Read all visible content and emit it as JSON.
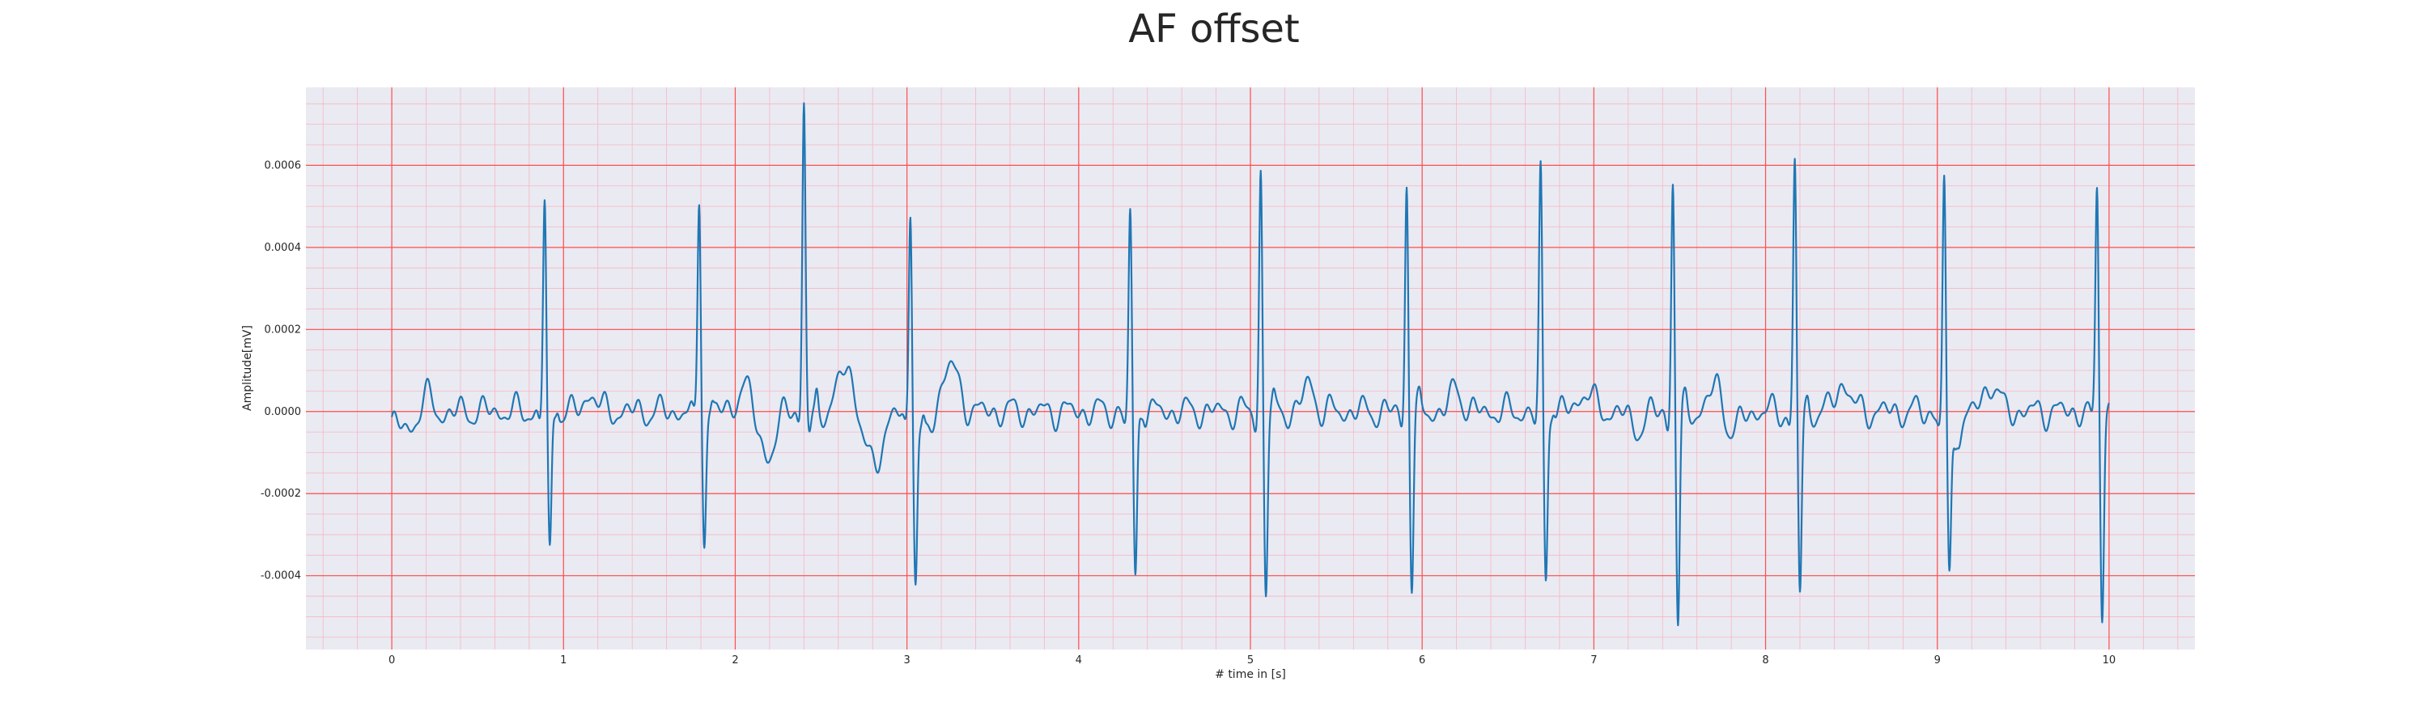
{
  "chart_data": {
    "type": "line",
    "title": "AF offset",
    "xlabel": "# time in [s]",
    "ylabel": "Amplitude[mV]",
    "xlim": [
      -0.5,
      10.5
    ],
    "ylim": [
      -0.00058,
      0.00079
    ],
    "xticks": [
      0,
      1,
      2,
      3,
      4,
      5,
      6,
      7,
      8,
      9,
      10
    ],
    "xtick_labels": [
      "0",
      "1",
      "2",
      "3",
      "4",
      "5",
      "6",
      "7",
      "8",
      "9",
      "10"
    ],
    "yticks": [
      -0.0004,
      -0.0002,
      0.0,
      0.0002,
      0.0004,
      0.0006
    ],
    "ytick_labels": [
      "-0.0004",
      "-0.0002",
      "0.0000",
      "0.0002",
      "0.0004",
      "0.0006"
    ],
    "grid": "major and minor, red",
    "background": "#eaeaf2",
    "major_grid_color": "#ff4d4d",
    "minor_grid_color": "#f7b6c2",
    "line_color": "#1f77b4",
    "beats": [
      {
        "t": 0.89,
        "r": 0.00052,
        "s": -0.00036,
        "sec": 2.5e-05
      },
      {
        "t": 1.79,
        "r": 0.00053,
        "s": -0.00031,
        "sec": 2e-05
      },
      {
        "t": 2.4,
        "r": 0.00073,
        "s": -5e-05,
        "sec": 4e-05
      },
      {
        "t": 3.02,
        "r": 0.00052,
        "s": -0.00038,
        "sec": 3e-05
      },
      {
        "t": 4.3,
        "r": 0.00048,
        "s": -0.00041,
        "sec": 2e-05
      },
      {
        "t": 5.06,
        "r": 0.00059,
        "s": -0.00043,
        "sec": 2e-05
      },
      {
        "t": 5.91,
        "r": 0.00057,
        "s": -0.00042,
        "sec": 2e-05
      },
      {
        "t": 6.69,
        "r": 0.00058,
        "s": -0.0004,
        "sec": 2e-05
      },
      {
        "t": 7.46,
        "r": 0.00057,
        "s": -0.00052,
        "sec": 2e-05
      },
      {
        "t": 8.17,
        "r": 0.0006,
        "s": -0.00044,
        "sec": 2e-05
      },
      {
        "t": 9.04,
        "r": 0.00059,
        "s": -0.00037,
        "sec": 2e-05
      },
      {
        "t": 9.93,
        "r": 0.00055,
        "s": -0.00048,
        "sec": 2e-05
      }
    ],
    "waves": [
      {
        "t": 0.2,
        "a": 5e-05,
        "w": 0.04
      },
      {
        "t": 0.1,
        "a": -2e-05,
        "w": 0.05
      },
      {
        "t": 1.16,
        "a": 5e-05,
        "w": 0.03
      },
      {
        "t": 2.05,
        "a": 6e-05,
        "w": 0.04
      },
      {
        "t": 2.3,
        "a": 4e-05,
        "w": 0.03
      },
      {
        "t": 2.65,
        "a": 0.00013,
        "w": 0.04
      },
      {
        "t": 2.8,
        "a": -0.00012,
        "w": 0.06
      },
      {
        "t": 2.2,
        "a": -0.00011,
        "w": 0.05
      },
      {
        "t": 3.25,
        "a": 0.00011,
        "w": 0.05
      },
      {
        "t": 3.1,
        "a": -7e-05,
        "w": 0.04
      },
      {
        "t": 5.34,
        "a": 7e-05,
        "w": 0.03
      },
      {
        "t": 6.2,
        "a": 6e-05,
        "w": 0.03
      },
      {
        "t": 6.95,
        "a": 5e-05,
        "w": 0.04
      },
      {
        "t": 7.25,
        "a": -4e-05,
        "w": 0.04
      },
      {
        "t": 7.72,
        "a": 7e-05,
        "w": 0.04
      },
      {
        "t": 7.8,
        "a": -6e-05,
        "w": 0.04
      },
      {
        "t": 8.45,
        "a": 7e-05,
        "w": 0.04
      },
      {
        "t": 9.31,
        "a": 7e-05,
        "w": 0.04
      },
      {
        "t": 9.1,
        "a": -7e-05,
        "w": 0.04
      }
    ],
    "baseline_start": -3e-05,
    "t_end": 10.0
  }
}
